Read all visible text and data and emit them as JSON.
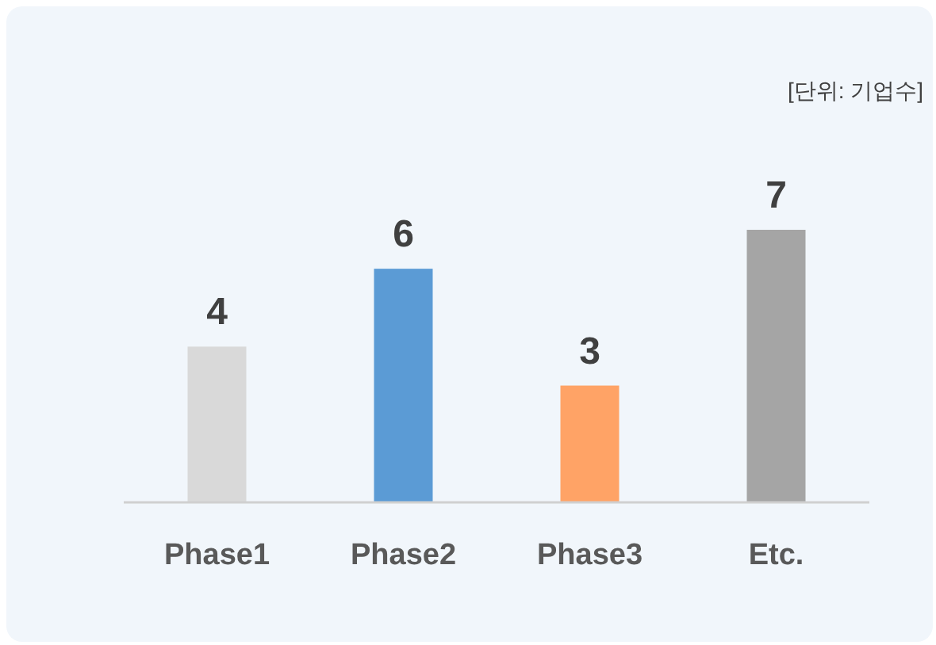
{
  "chart_data": {
    "type": "bar",
    "categories": [
      "Phase1",
      "Phase2",
      "Phase3",
      "Etc."
    ],
    "values": [
      4,
      6,
      3,
      7
    ],
    "colors": [
      "#d9d9d9",
      "#5b9bd5",
      "#ffa366",
      "#a5a5a5"
    ],
    "data_labels": true,
    "annotations": [
      "[단위: 기업수]"
    ]
  }
}
